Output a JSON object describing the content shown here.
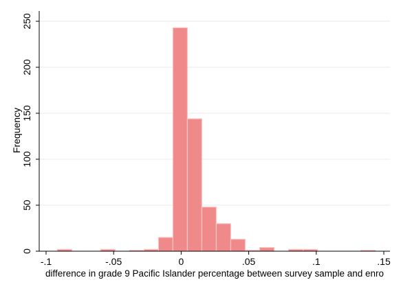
{
  "chart_data": {
    "type": "bar",
    "title": "",
    "xlabel": "difference in grade 9 Pacific Islander percentage between survey sample and enro",
    "ylabel": "Frequency",
    "xlim": [
      -0.1,
      0.155
    ],
    "ylim": [
      0,
      255
    ],
    "x_ticks": [
      -0.1,
      -0.05,
      0,
      0.05,
      0.1,
      0.15
    ],
    "x_tick_labels": [
      "-.1",
      "-.05",
      "0",
      ".05",
      ".1",
      ".15"
    ],
    "y_ticks": [
      0,
      50,
      100,
      150,
      200,
      250
    ],
    "y_tick_labels": [
      "0",
      "50",
      "100",
      "150",
      "200",
      "250"
    ],
    "grid": true,
    "bar_color": "#f08a8a",
    "bar_edge_color": "#f9c6c6",
    "bin_width": 0.0107,
    "bins": [
      {
        "x0": -0.0917,
        "value": 2
      },
      {
        "x0": -0.081,
        "value": 0
      },
      {
        "x0": -0.0703,
        "value": 0
      },
      {
        "x0": -0.0596,
        "value": 2
      },
      {
        "x0": -0.0489,
        "value": 0
      },
      {
        "x0": -0.0382,
        "value": 1
      },
      {
        "x0": -0.0275,
        "value": 2
      },
      {
        "x0": -0.0168,
        "value": 15
      },
      {
        "x0": -0.0061,
        "value": 243
      },
      {
        "x0": 0.0046,
        "value": 144
      },
      {
        "x0": 0.0153,
        "value": 48
      },
      {
        "x0": 0.026,
        "value": 30
      },
      {
        "x0": 0.0367,
        "value": 13
      },
      {
        "x0": 0.0474,
        "value": 1
      },
      {
        "x0": 0.0581,
        "value": 4
      },
      {
        "x0": 0.0688,
        "value": 0
      },
      {
        "x0": 0.0795,
        "value": 2
      },
      {
        "x0": 0.0902,
        "value": 2
      },
      {
        "x0": 0.1009,
        "value": 0
      },
      {
        "x0": 0.1116,
        "value": 0
      },
      {
        "x0": 0.1223,
        "value": 0
      },
      {
        "x0": 0.133,
        "value": 1
      }
    ]
  }
}
